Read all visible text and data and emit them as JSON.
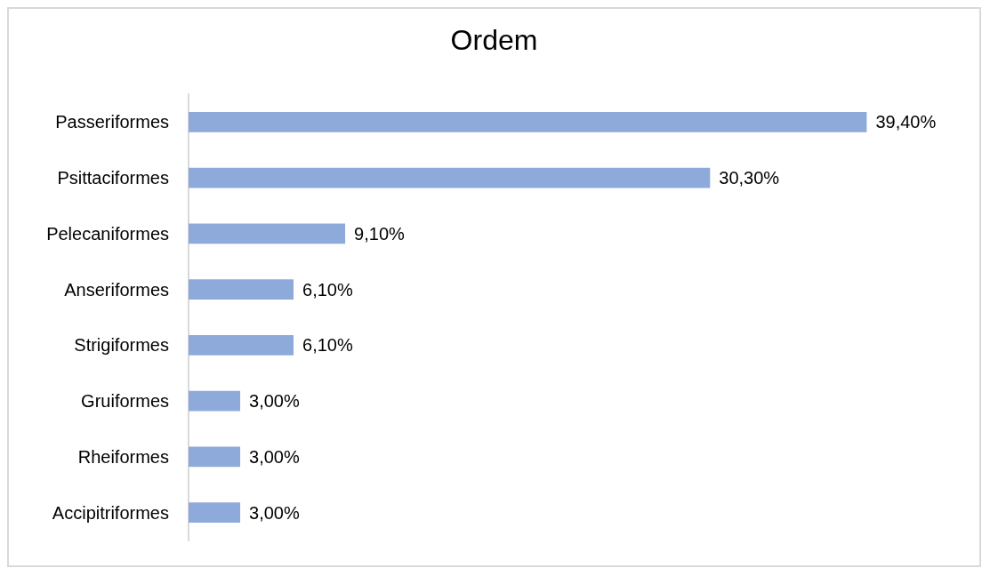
{
  "chart_data": {
    "type": "bar",
    "orientation": "horizontal",
    "title": "Ordem",
    "categories": [
      "Passeriformes",
      "Psittaciformes",
      "Pelecaniformes",
      "Anseriformes",
      "Strigiformes",
      "Gruiformes",
      "Rheiformes",
      "Accipitriformes"
    ],
    "values": [
      39.4,
      30.3,
      9.1,
      6.1,
      6.1,
      3.0,
      3.0,
      3.0
    ],
    "value_labels": [
      "39,40%",
      "30,30%",
      "9,10%",
      "6,10%",
      "6,10%",
      "3,00%",
      "3,00%",
      "3,00%"
    ],
    "color": "#8eaadb"
  }
}
